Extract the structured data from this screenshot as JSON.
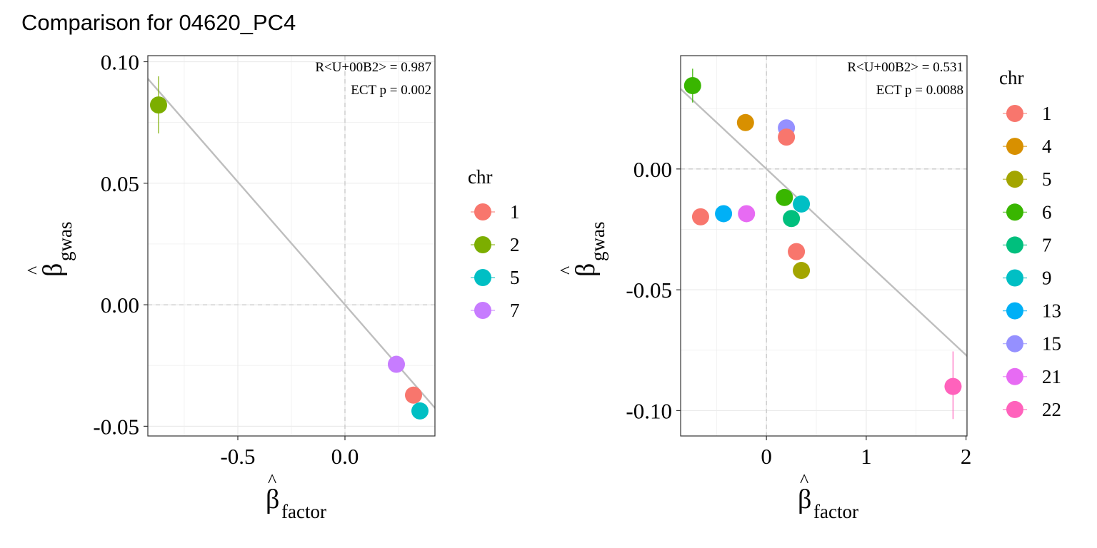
{
  "title": "Comparison for 04620_PC4",
  "chart_data": [
    {
      "type": "scatter",
      "xlabel": {
        "main": "β",
        "hat": "^",
        "sub": "factor"
      },
      "ylabel": {
        "main": "β",
        "hat": "^",
        "sub": "gwas"
      },
      "xlim": [
        -0.92,
        0.42
      ],
      "ylim": [
        -0.054,
        0.1025
      ],
      "xticks": [
        {
          "v": -0.5,
          "label": "-0.5"
        },
        {
          "v": 0.0,
          "label": "0.0"
        }
      ],
      "yticks": [
        {
          "v": 0.1,
          "label": "0.10"
        },
        {
          "v": 0.05,
          "label": "0.05"
        },
        {
          "v": 0.0,
          "label": "0.00"
        },
        {
          "v": -0.05,
          "label": "-0.05"
        }
      ],
      "grid": true,
      "annotations": [
        "R<U+00B2> = 0.987",
        "ECT p = 0.002"
      ],
      "fit_line": {
        "slope": -0.1011
      },
      "legend": {
        "title": "chr",
        "position": "right",
        "entries": [
          {
            "label": "1",
            "color": "#F8766D"
          },
          {
            "label": "2",
            "color": "#7CAE00"
          },
          {
            "label": "5",
            "color": "#00BFC4"
          },
          {
            "label": "7",
            "color": "#C77CFF"
          }
        ]
      },
      "points": [
        {
          "chr": "2",
          "x": -0.87,
          "y": 0.0822,
          "ymin": 0.0705,
          "ymax": 0.094,
          "color": "#7CAE00"
        },
        {
          "chr": "7",
          "x": 0.24,
          "y": -0.0245,
          "color": "#C77CFF"
        },
        {
          "chr": "1",
          "x": 0.32,
          "y": -0.0372,
          "color": "#F8766D"
        },
        {
          "chr": "5",
          "x": 0.35,
          "y": -0.0437,
          "color": "#00BFC4"
        }
      ]
    },
    {
      "type": "scatter",
      "xlabel": {
        "main": "β",
        "hat": "^",
        "sub": "factor"
      },
      "ylabel": {
        "main": "β",
        "hat": "^",
        "sub": "gwas"
      },
      "xlim": [
        -0.86,
        2.01
      ],
      "ylim": [
        -0.1105,
        0.0469
      ],
      "xticks": [
        {
          "v": 0,
          "label": "0"
        },
        {
          "v": 1,
          "label": "1"
        },
        {
          "v": 2,
          "label": "2"
        }
      ],
      "yticks": [
        {
          "v": 0.0,
          "label": "0.00"
        },
        {
          "v": -0.05,
          "label": "-0.05"
        },
        {
          "v": -0.1,
          "label": "-0.10"
        }
      ],
      "grid": true,
      "annotations": [
        "R<U+00B2> = 0.531",
        "ECT p = 0.0088"
      ],
      "fit_line": {
        "slope": -0.0385
      },
      "legend": {
        "title": "chr",
        "position": "right",
        "entries": [
          {
            "label": "1",
            "color": "#F8766D"
          },
          {
            "label": "4",
            "color": "#D89000"
          },
          {
            "label": "5",
            "color": "#A3A500"
          },
          {
            "label": "6",
            "color": "#39B600"
          },
          {
            "label": "7",
            "color": "#00BF7D"
          },
          {
            "label": "9",
            "color": "#00BFC4"
          },
          {
            "label": "13",
            "color": "#00B0F6"
          },
          {
            "label": "15",
            "color": "#9590FF"
          },
          {
            "label": "21",
            "color": "#E76BF3"
          },
          {
            "label": "22",
            "color": "#FF62BC"
          }
        ]
      },
      "points": [
        {
          "chr": "6",
          "x": -0.74,
          "y": 0.0345,
          "ymin": 0.0275,
          "ymax": 0.0415,
          "color": "#39B600"
        },
        {
          "chr": "4",
          "x": -0.21,
          "y": 0.0192,
          "color": "#D89000"
        },
        {
          "chr": "15",
          "x": 0.2,
          "y": 0.017,
          "color": "#9590FF"
        },
        {
          "chr": "1",
          "x": 0.2,
          "y": 0.0132,
          "color": "#F8766D"
        },
        {
          "chr": "6",
          "x": 0.18,
          "y": -0.0118,
          "color": "#39B600"
        },
        {
          "chr": "9",
          "x": 0.35,
          "y": -0.0145,
          "color": "#00BFC4"
        },
        {
          "chr": "7",
          "x": 0.25,
          "y": -0.0205,
          "color": "#00BF7D"
        },
        {
          "chr": "1",
          "x": -0.66,
          "y": -0.0198,
          "color": "#F8766D"
        },
        {
          "chr": "13",
          "x": -0.43,
          "y": -0.0185,
          "color": "#00B0F6"
        },
        {
          "chr": "21",
          "x": -0.2,
          "y": -0.0185,
          "color": "#E76BF3"
        },
        {
          "chr": "1",
          "x": 0.3,
          "y": -0.0342,
          "color": "#F8766D"
        },
        {
          "chr": "5",
          "x": 0.35,
          "y": -0.042,
          "color": "#A3A500"
        },
        {
          "chr": "22",
          "x": 1.87,
          "y": -0.09,
          "ymin": -0.1035,
          "ymax": -0.0755,
          "color": "#FF62BC"
        }
      ]
    }
  ]
}
